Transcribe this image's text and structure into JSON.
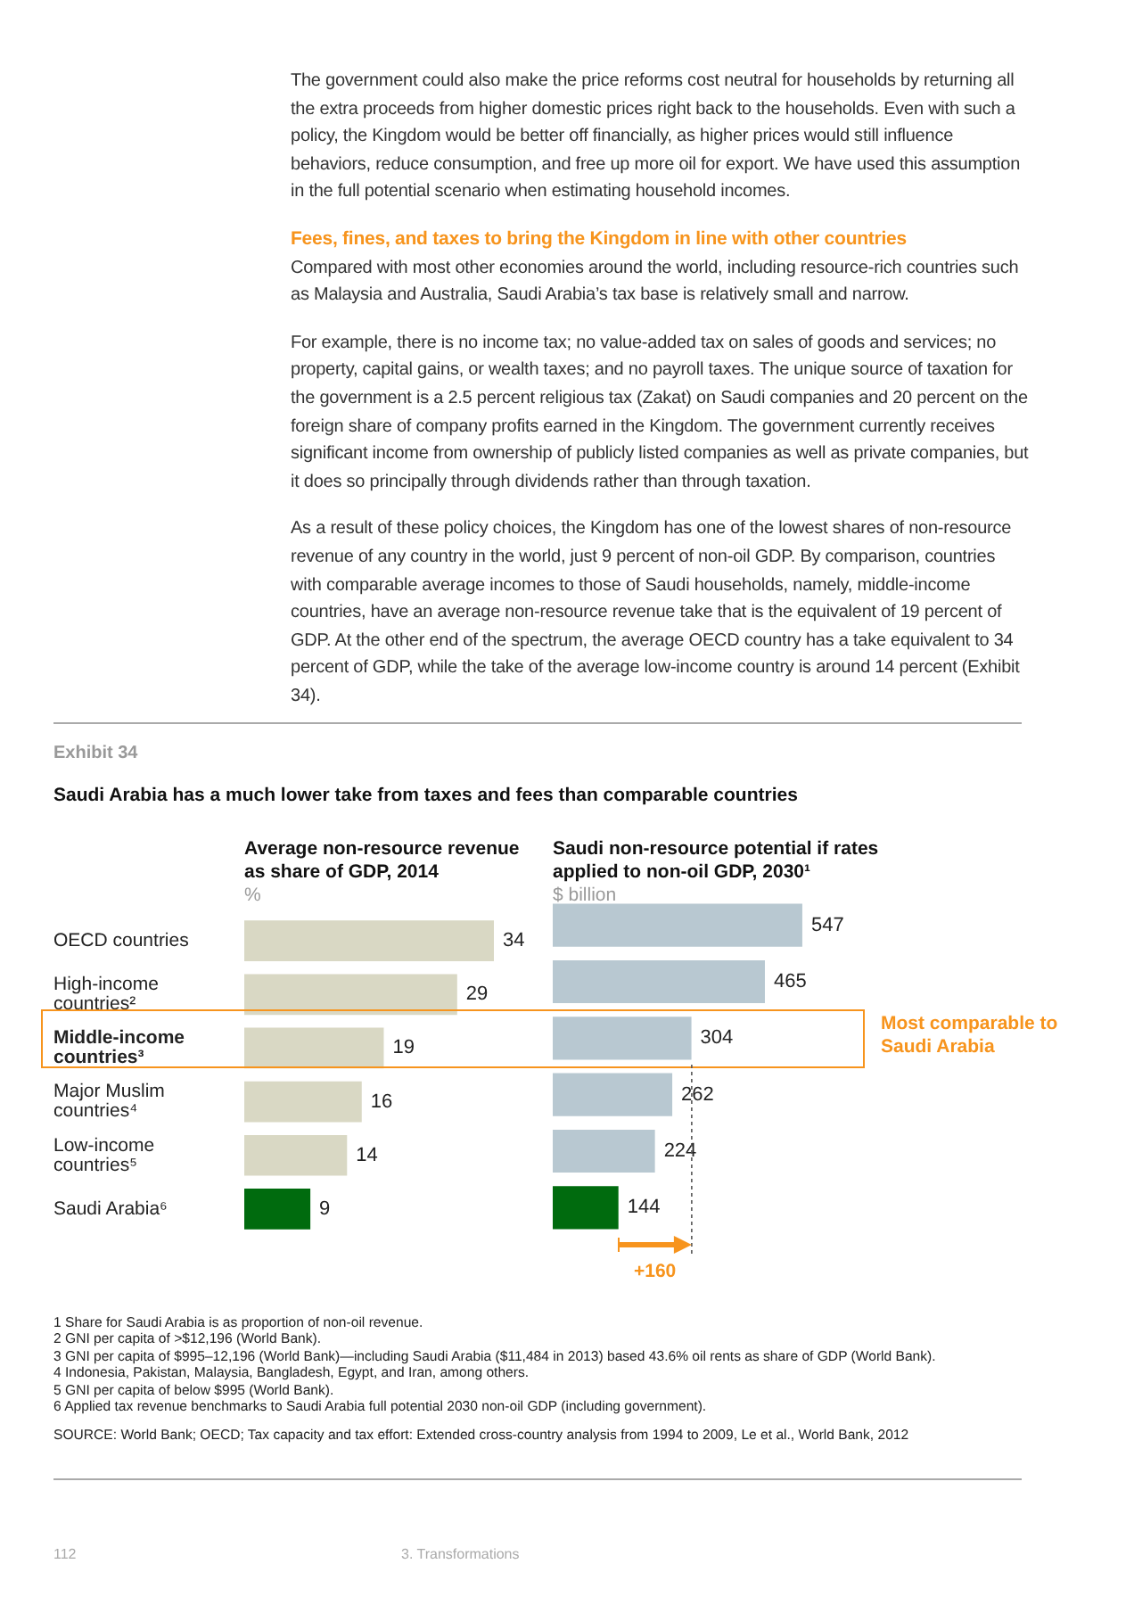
{
  "chart_data": [
    {
      "type": "bar",
      "orientation": "horizontal",
      "title": "Average non-resource revenue as share of GDP, 2014",
      "subtitle": "%",
      "categories": [
        "OECD countries",
        "High-income countries²",
        "Middle-income countries³",
        "Major Muslim countries⁴",
        "Low-income countries⁵",
        "Saudi Arabia⁶"
      ],
      "values": [
        34,
        29,
        19,
        16,
        14,
        9
      ],
      "colors": [
        "#d9d8c4",
        "#d9d8c4",
        "#d9d8c4",
        "#d9d8c4",
        "#d9d8c4",
        "#006b0e"
      ],
      "data_labels": true,
      "tick_labels": "y",
      "annotations": [
        "The government could also make the price reforms cost neutral for households by returning all the extra proceeds from higher domestic prices right back to the households. Even with such a policy, the Kingdom would be better off financially, as higher prices would still influence behaviors, reduce consumption, and free up more oil for export. We have used this assumption in the full potential scenario when estimating household incomes.",
        "Fees, fines, and taxes to bring the Kingdom in line with other countries",
        "Compared with most other economies around the world, including resource-rich countries such as Malaysia and Australia, Saudi Arabia’s tax base is relatively small and narrow.",
        "For example, there is no income tax; no value-added tax on sales of goods and services; no property, capital gains, or wealth taxes; and no payroll taxes. The unique source of taxation for the government is a 2.5 percent religious tax (Zakat) on Saudi companies and 20 percent on the foreign share of company profits earned in the Kingdom. The government currently receives significant income from ownership of publicly listed companies as well as private companies, but it does so principally through dividends rather than through taxation.",
        "As a result of these policy choices, the Kingdom has one of the lowest shares of non-resource revenue of any country in the world, just 9 percent of non-oil GDP. By comparison, countries with comparable average incomes to those of Saudi households, namely, middle-income countries, have an average non-resource revenue take that is the equivalent of 19 percent of GDP. At the other end of the spectrum, the average OECD country has a take equivalent to 34 percent of GDP, while the take of the average low-income country is around 14 percent (Exhibit 34).",
        "Exhibit 34",
        "Saudi Arabia has a much lower take from taxes and fees than comparable countries",
        "1 Share for Saudi Arabia is as proportion of non-oil revenue.",
        "2 GNI per capita of >$12,196 (World Bank).",
        "3 GNI per capita of $995–12,196 (World Bank)—including Saudi Arabia ($11,484 in 2013) based 43.6% oil rents as share of GDP (World Bank).",
        "4 Indonesia, Pakistan, Malaysia, Bangladesh, Egypt, and Iran, among others.",
        "5 GNI per capita of below $995 (World Bank).",
        "6 Applied tax revenue benchmarks to Saudi Arabia full potential 2030 non-oil GDP (including government).",
        "SOURCE: World Bank; OECD; Tax capacity and tax effort: Extended cross-country analysis from 1994 to 2009, Le et al., World Bank, 2012",
        "112",
        "3. Transformations"
      ]
    },
    {
      "type": "bar",
      "orientation": "horizontal",
      "title": "Saudi non-resource potential if rates applied to non-oil GDP, 2030¹",
      "subtitle": "$ billion",
      "categories": [
        null,
        null,
        null,
        null,
        null,
        null
      ],
      "values": [
        547,
        465,
        304,
        262,
        224,
        144
      ],
      "colors": [
        "#b8c8d1",
        "#b8c8d1",
        "#b8c8d1",
        "#b8c8d1",
        "#b8c8d1",
        "#006b0e"
      ],
      "data_labels": true,
      "tick_labels": false,
      "annotations": [
        "Most comparable to Saudi Arabia",
        "+160"
      ]
    }
  ]
}
